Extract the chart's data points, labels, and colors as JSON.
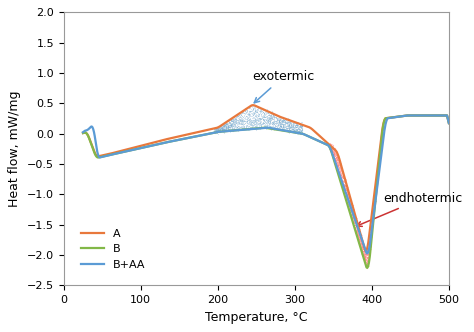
{
  "xlabel": "Temperature, °C",
  "ylabel": "Heat flow, mW/mg",
  "xlim": [
    0,
    500
  ],
  "ylim": [
    -2.5,
    2
  ],
  "yticks": [
    -2.5,
    -2,
    -1.5,
    -1,
    -0.5,
    0,
    0.5,
    1,
    1.5,
    2
  ],
  "xticks": [
    0,
    100,
    200,
    300,
    400,
    500
  ],
  "legend_labels": [
    "A",
    "B",
    "B+AA"
  ],
  "line_colors": [
    "#E8783C",
    "#82B848",
    "#5B9BD5"
  ],
  "annotation_exo_text": "exotermic",
  "annotation_endo_text": "endhotermic",
  "scatter_color_exo": "#7BAFD4",
  "scatter_color_endo": "#FF8888",
  "bg_color": "#FFFFFF"
}
